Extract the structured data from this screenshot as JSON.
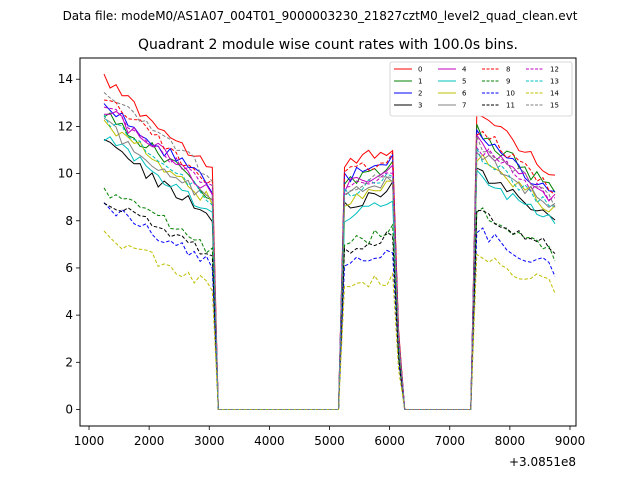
{
  "figure": {
    "suptitle": "Data file: modeM0/AS1A07_004T01_9000003230_21827cztM0_level2_quad_clean.evt",
    "title": "Quadrant 2 module wise count rates with 100.0s bins.",
    "offset_text": "+3.0851e8"
  },
  "chart_data": {
    "type": "line",
    "title": "Quadrant 2 module wise count rates with 100.0s bins.",
    "xlabel": "",
    "ylabel": "",
    "xlim": [
      850,
      9100
    ],
    "ylim": [
      -0.7,
      14.9
    ],
    "x_offset": 308510000,
    "x_ticks": [
      1000,
      2000,
      3000,
      4000,
      5000,
      6000,
      7000,
      8000,
      9000
    ],
    "x_tick_labels": [
      "1000",
      "2000",
      "3000",
      "4000",
      "5000",
      "6000",
      "7000",
      "8000",
      "9000"
    ],
    "y_ticks": [
      0,
      2,
      4,
      6,
      8,
      10,
      12,
      14
    ],
    "y_tick_labels": [
      "0",
      "2",
      "4",
      "6",
      "8",
      "10",
      "12",
      "14"
    ],
    "grid": false,
    "legend_position": "top-right",
    "segments": [
      {
        "start": 1250,
        "end": 3050
      },
      {
        "start": 5200,
        "end": 6100
      },
      {
        "start": 7450,
        "end": 8750
      }
    ],
    "series": [
      {
        "name": "0",
        "color": "#ff0000",
        "style": "solid",
        "levels": [
          14.0,
          11.2,
          12.6
        ]
      },
      {
        "name": "1",
        "color": "#008000",
        "style": "solid",
        "levels": [
          12.6,
          10.4,
          11.8
        ]
      },
      {
        "name": "2",
        "color": "#0000ff",
        "style": "solid",
        "levels": [
          13.0,
          10.6,
          11.6
        ]
      },
      {
        "name": "3",
        "color": "#000000",
        "style": "solid",
        "levels": [
          11.3,
          9.4,
          10.2
        ]
      },
      {
        "name": "4",
        "color": "#c000c0",
        "style": "solid",
        "levels": [
          12.8,
          10.2,
          11.4
        ]
      },
      {
        "name": "5",
        "color": "#00bfbf",
        "style": "solid",
        "levels": [
          11.5,
          8.9,
          10.0
        ]
      },
      {
        "name": "6",
        "color": "#bfbf00",
        "style": "solid",
        "levels": [
          12.2,
          9.6,
          10.8
        ]
      },
      {
        "name": "7",
        "color": "#808080",
        "style": "solid",
        "levels": [
          12.1,
          9.8,
          10.9
        ]
      },
      {
        "name": "8",
        "color": "#ff0000",
        "style": "dashed",
        "levels": [
          13.3,
          10.8,
          11.9
        ]
      },
      {
        "name": "9",
        "color": "#008000",
        "style": "dashed",
        "levels": [
          9.4,
          7.6,
          8.4
        ]
      },
      {
        "name": "10",
        "color": "#0000ff",
        "style": "dashed",
        "levels": [
          8.6,
          6.8,
          7.6
        ]
      },
      {
        "name": "11",
        "color": "#000000",
        "style": "dashed",
        "levels": [
          9.0,
          7.4,
          8.6
        ]
      },
      {
        "name": "12",
        "color": "#c000c0",
        "style": "dashed",
        "levels": [
          12.9,
          10.0,
          11.2
        ]
      },
      {
        "name": "13",
        "color": "#00bfbf",
        "style": "dashed",
        "levels": [
          12.4,
          9.9,
          10.8
        ]
      },
      {
        "name": "14",
        "color": "#bfbf00",
        "style": "dashed",
        "levels": [
          7.3,
          5.6,
          6.6
        ]
      },
      {
        "name": "15",
        "color": "#808080",
        "style": "dashed",
        "levels": [
          13.6,
          10.1,
          11.3
        ]
      }
    ]
  }
}
